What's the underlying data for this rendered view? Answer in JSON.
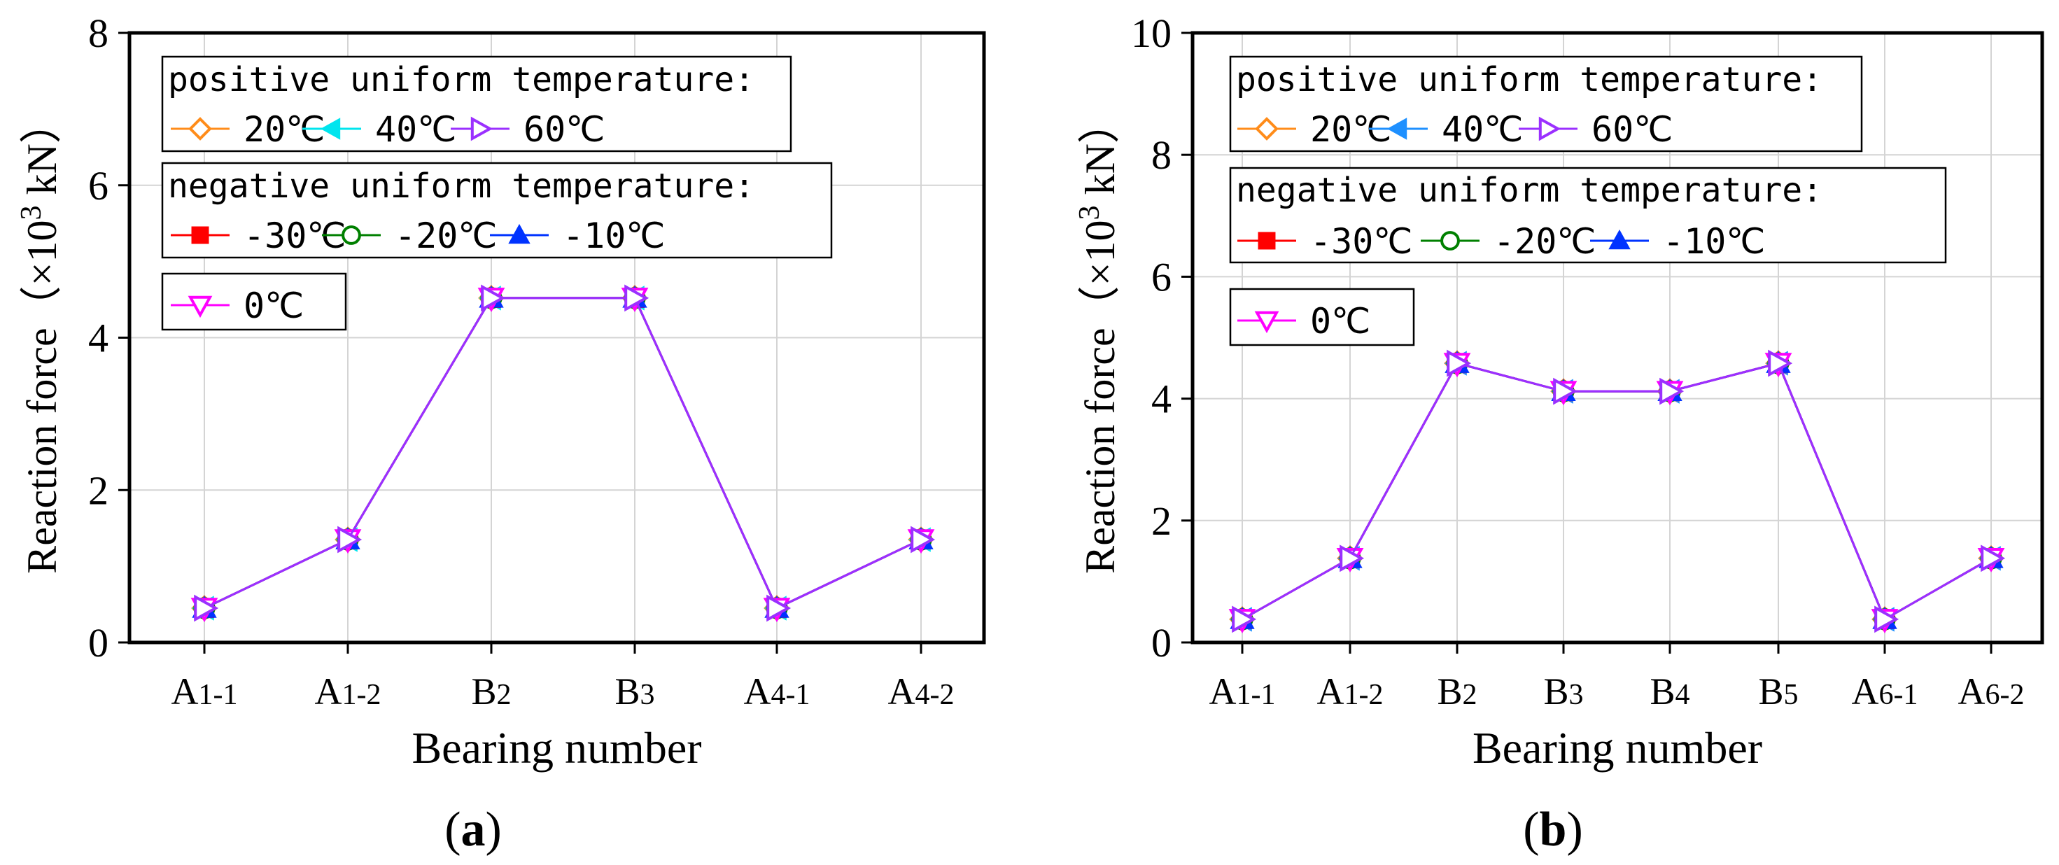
{
  "chart_data": [
    {
      "type": "line",
      "panel_label": "(a)",
      "xlabel": "Bearing number",
      "ylabel": "Reaction force (×10³ kN)",
      "ylabel_prefix": "Reaction force（×10",
      "ylabel_exp": "3",
      "ylabel_suffix": " kN）",
      "ylim": [
        0,
        8
      ],
      "yticks": [
        0,
        2,
        4,
        6,
        8
      ],
      "grid": true,
      "categories": [
        {
          "main": "A",
          "sub": "1-1"
        },
        {
          "main": "A",
          "sub": "1-2"
        },
        {
          "main": "B",
          "sub": "2"
        },
        {
          "main": "B",
          "sub": "3"
        },
        {
          "main": "A",
          "sub": "4-1"
        },
        {
          "main": "A",
          "sub": "4-2"
        }
      ],
      "series": [
        {
          "name": "20℃",
          "group": "positive",
          "color": "#ff8c1a",
          "marker": "diamond-open",
          "values": [
            0.45,
            1.35,
            4.52,
            4.52,
            0.45,
            1.35
          ]
        },
        {
          "name": "40℃",
          "group": "positive",
          "color": "#00e5ee",
          "marker": "tri-left",
          "values": [
            0.45,
            1.35,
            4.52,
            4.52,
            0.45,
            1.35
          ]
        },
        {
          "name": "60℃",
          "group": "positive",
          "color": "#9b30ff",
          "marker": "tri-right-open",
          "values": [
            0.45,
            1.35,
            4.52,
            4.52,
            0.45,
            1.35
          ]
        },
        {
          "name": "-30℃",
          "group": "negative",
          "color": "#ff0000",
          "marker": "square",
          "values": [
            0.45,
            1.35,
            4.52,
            4.52,
            0.45,
            1.35
          ]
        },
        {
          "name": "-20℃",
          "group": "negative",
          "color": "#008000",
          "marker": "circle-open",
          "values": [
            0.45,
            1.35,
            4.52,
            4.52,
            0.45,
            1.35
          ]
        },
        {
          "name": "-10℃",
          "group": "negative",
          "color": "#0033ff",
          "marker": "tri-up",
          "values": [
            0.45,
            1.35,
            4.52,
            4.52,
            0.45,
            1.35
          ]
        },
        {
          "name": "0℃",
          "group": "zero",
          "color": "#ff00ff",
          "marker": "tri-down-open",
          "values": [
            0.45,
            1.35,
            4.52,
            4.52,
            0.45,
            1.35
          ]
        }
      ],
      "legend": [
        {
          "title": "positive uniform temperature:",
          "items": [
            "20℃",
            "40℃",
            "60℃"
          ]
        },
        {
          "title": "negative uniform temperature:",
          "items": [
            "-30℃",
            "-20℃",
            "-10℃"
          ]
        },
        {
          "title": "",
          "items": [
            "0℃"
          ]
        }
      ],
      "legend_placement": "top-left"
    },
    {
      "type": "line",
      "panel_label": "(b)",
      "xlabel": "Bearing number",
      "ylabel": "Reaction force (×10³ kN)",
      "ylabel_prefix": "Reaction force（×10",
      "ylabel_exp": "3",
      "ylabel_suffix": " kN）",
      "ylim": [
        0,
        10
      ],
      "yticks": [
        0,
        2,
        4,
        6,
        8,
        10
      ],
      "grid": true,
      "categories": [
        {
          "main": "A",
          "sub": "1-1"
        },
        {
          "main": "A",
          "sub": "1-2"
        },
        {
          "main": "B",
          "sub": "2"
        },
        {
          "main": "B",
          "sub": "3"
        },
        {
          "main": "B",
          "sub": "4"
        },
        {
          "main": "B",
          "sub": "5"
        },
        {
          "main": "A",
          "sub": "6-1"
        },
        {
          "main": "A",
          "sub": "6-2"
        }
      ],
      "series": [
        {
          "name": "20℃",
          "group": "positive",
          "color": "#ff8c1a",
          "marker": "diamond-open",
          "values": [
            0.38,
            1.38,
            4.58,
            4.12,
            4.12,
            4.58,
            0.38,
            1.38
          ]
        },
        {
          "name": "40℃",
          "group": "positive",
          "color": "#1e90ff",
          "marker": "tri-left",
          "values": [
            0.38,
            1.38,
            4.58,
            4.12,
            4.12,
            4.58,
            0.38,
            1.38
          ]
        },
        {
          "name": "60℃",
          "group": "positive",
          "color": "#9b30ff",
          "marker": "tri-right-open",
          "values": [
            0.38,
            1.38,
            4.58,
            4.12,
            4.12,
            4.58,
            0.38,
            1.38
          ]
        },
        {
          "name": "-30℃",
          "group": "negative",
          "color": "#ff0000",
          "marker": "square",
          "values": [
            0.38,
            1.38,
            4.58,
            4.12,
            4.12,
            4.58,
            0.38,
            1.38
          ]
        },
        {
          "name": "-20℃",
          "group": "negative",
          "color": "#008000",
          "marker": "circle-open",
          "values": [
            0.38,
            1.38,
            4.58,
            4.12,
            4.12,
            4.58,
            0.38,
            1.38
          ]
        },
        {
          "name": "-10℃",
          "group": "negative",
          "color": "#0033ff",
          "marker": "tri-up",
          "values": [
            0.38,
            1.38,
            4.58,
            4.12,
            4.12,
            4.58,
            0.38,
            1.38
          ]
        },
        {
          "name": "0℃",
          "group": "zero",
          "color": "#ff00ff",
          "marker": "tri-down-open",
          "values": [
            0.38,
            1.38,
            4.58,
            4.12,
            4.12,
            4.58,
            0.38,
            1.38
          ]
        }
      ],
      "legend": [
        {
          "title": "positive uniform temperature:",
          "items": [
            "20℃",
            "40℃",
            "60℃"
          ]
        },
        {
          "title": "negative uniform temperature:",
          "items": [
            "-30℃",
            "-20℃",
            "-10℃"
          ]
        },
        {
          "title": "",
          "items": [
            "0℃"
          ]
        }
      ],
      "legend_placement": "top-left"
    }
  ]
}
